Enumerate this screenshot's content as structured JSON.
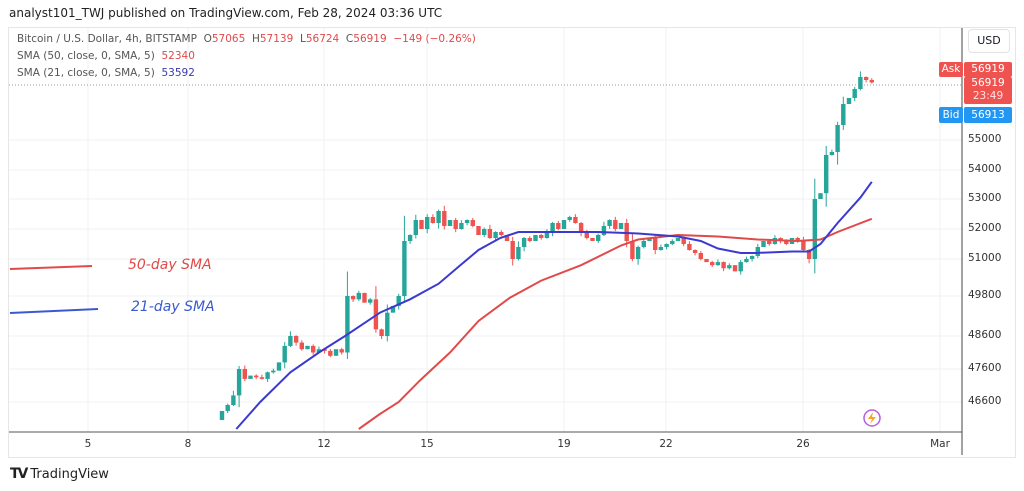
{
  "header": {
    "published": "analyst101_TWJ published on TradingView.com, Feb 28, 2024 03:36 UTC"
  },
  "legend": {
    "symbol": "Bitcoin / U.S. Dollar, 4h, BITSTAMP",
    "o_label": "O",
    "open": "57065",
    "h_label": "H",
    "high": "57139",
    "l_label": "L",
    "low": "56724",
    "c_label": "C",
    "close": "56919",
    "change": "−149 (−0.26%)",
    "sma50_label": "SMA (50, close, 0, SMA, 5)",
    "sma50_value": "52340",
    "sma21_label": "SMA (21, close, 0, SMA, 5)",
    "sma21_value": "53592"
  },
  "price_axis": {
    "currency": "USD",
    "ticks": [
      "55000",
      "54000",
      "53000",
      "52000",
      "51000",
      "49800",
      "48600",
      "47600",
      "46600"
    ],
    "ask_label": "Ask",
    "ask_price": "56919",
    "last_price": "56919",
    "countdown": "23:49",
    "bid_label": "Bid",
    "bid_price": "56913"
  },
  "time_axis": {
    "ticks": [
      "5",
      "8",
      "12",
      "15",
      "19",
      "22",
      "26",
      "Mar"
    ]
  },
  "annotations": {
    "sma50": "50-day SMA",
    "sma21": "21-day SMA"
  },
  "footer": {
    "brand": "TradingView"
  },
  "colors": {
    "up": "#26a69a",
    "down": "#ef5350",
    "sma50": "#e04a4a",
    "sma21": "#3a3ad0",
    "ask": "#ef5350",
    "bid": "#2196f3"
  },
  "chart_data": {
    "type": "candlestick",
    "interval": "4h",
    "first_candle": "Feb 9",
    "first_open": 46000,
    "closes": [
      46300,
      46500,
      46800,
      47600,
      47300,
      47400,
      47350,
      47300,
      47500,
      47550,
      47800,
      48300,
      48600,
      48400,
      48200,
      48300,
      48100,
      48200,
      48150,
      48000,
      48200,
      48100,
      49800,
      49700,
      49900,
      49600,
      49700,
      48800,
      48600,
      49300,
      49500,
      49800,
      51600,
      51800,
      52300,
      52000,
      52400,
      52200,
      52600,
      52100,
      52300,
      52000,
      52200,
      52300,
      52100,
      51800,
      52000,
      51700,
      51900,
      51800,
      51600,
      51000,
      51400,
      51700,
      51600,
      51800,
      51700,
      51900,
      52200,
      52000,
      52300,
      52400,
      52200,
      51900,
      51700,
      51600,
      51800,
      52100,
      52300,
      52000,
      52200,
      51600,
      51000,
      51400,
      51600,
      51700,
      51300,
      51400,
      51500,
      51600,
      51700,
      51500,
      51300,
      51200,
      51000,
      50900,
      50800,
      50900,
      50700,
      50800,
      50600,
      50900,
      51000,
      51100,
      51400,
      51600,
      51500,
      51700,
      51600,
      51500,
      51700,
      51600,
      51300,
      51000,
      53000,
      53200,
      54500,
      54600,
      55500,
      56200,
      56400,
      56700,
      57100,
      57000,
      56919
    ],
    "sma21": [
      [
        2.5,
        45700
      ],
      [
        6.7,
        46600
      ],
      [
        12,
        47500
      ],
      [
        17,
        48100
      ],
      [
        21.6,
        48600
      ],
      [
        27.7,
        49300
      ],
      [
        33,
        49700
      ],
      [
        38,
        50200
      ],
      [
        41.8,
        50800
      ],
      [
        45,
        51300
      ],
      [
        48.8,
        51700
      ],
      [
        52,
        51900
      ],
      [
        59,
        51900
      ],
      [
        66,
        51900
      ],
      [
        73,
        51850
      ],
      [
        80,
        51750
      ],
      [
        84,
        51600
      ],
      [
        87,
        51350
      ],
      [
        91,
        51200
      ],
      [
        93.5,
        51200
      ],
      [
        100,
        51250
      ],
      [
        103,
        51250
      ],
      [
        105,
        51500
      ],
      [
        108,
        52200
      ],
      [
        112,
        53050
      ],
      [
        114,
        53592
      ]
    ],
    "sma50": [
      [
        24,
        45700
      ],
      [
        27.7,
        46200
      ],
      [
        31,
        46600
      ],
      [
        34.7,
        47250
      ],
      [
        40,
        48100
      ],
      [
        45,
        49050
      ],
      [
        50.5,
        49750
      ],
      [
        56,
        50300
      ],
      [
        63,
        50800
      ],
      [
        70,
        51450
      ],
      [
        73,
        51650
      ],
      [
        80,
        51800
      ],
      [
        87,
        51750
      ],
      [
        94,
        51650
      ],
      [
        101,
        51600
      ],
      [
        105,
        51650
      ],
      [
        108,
        51900
      ],
      [
        114,
        52340
      ]
    ],
    "y_axis_scale": "log"
  }
}
